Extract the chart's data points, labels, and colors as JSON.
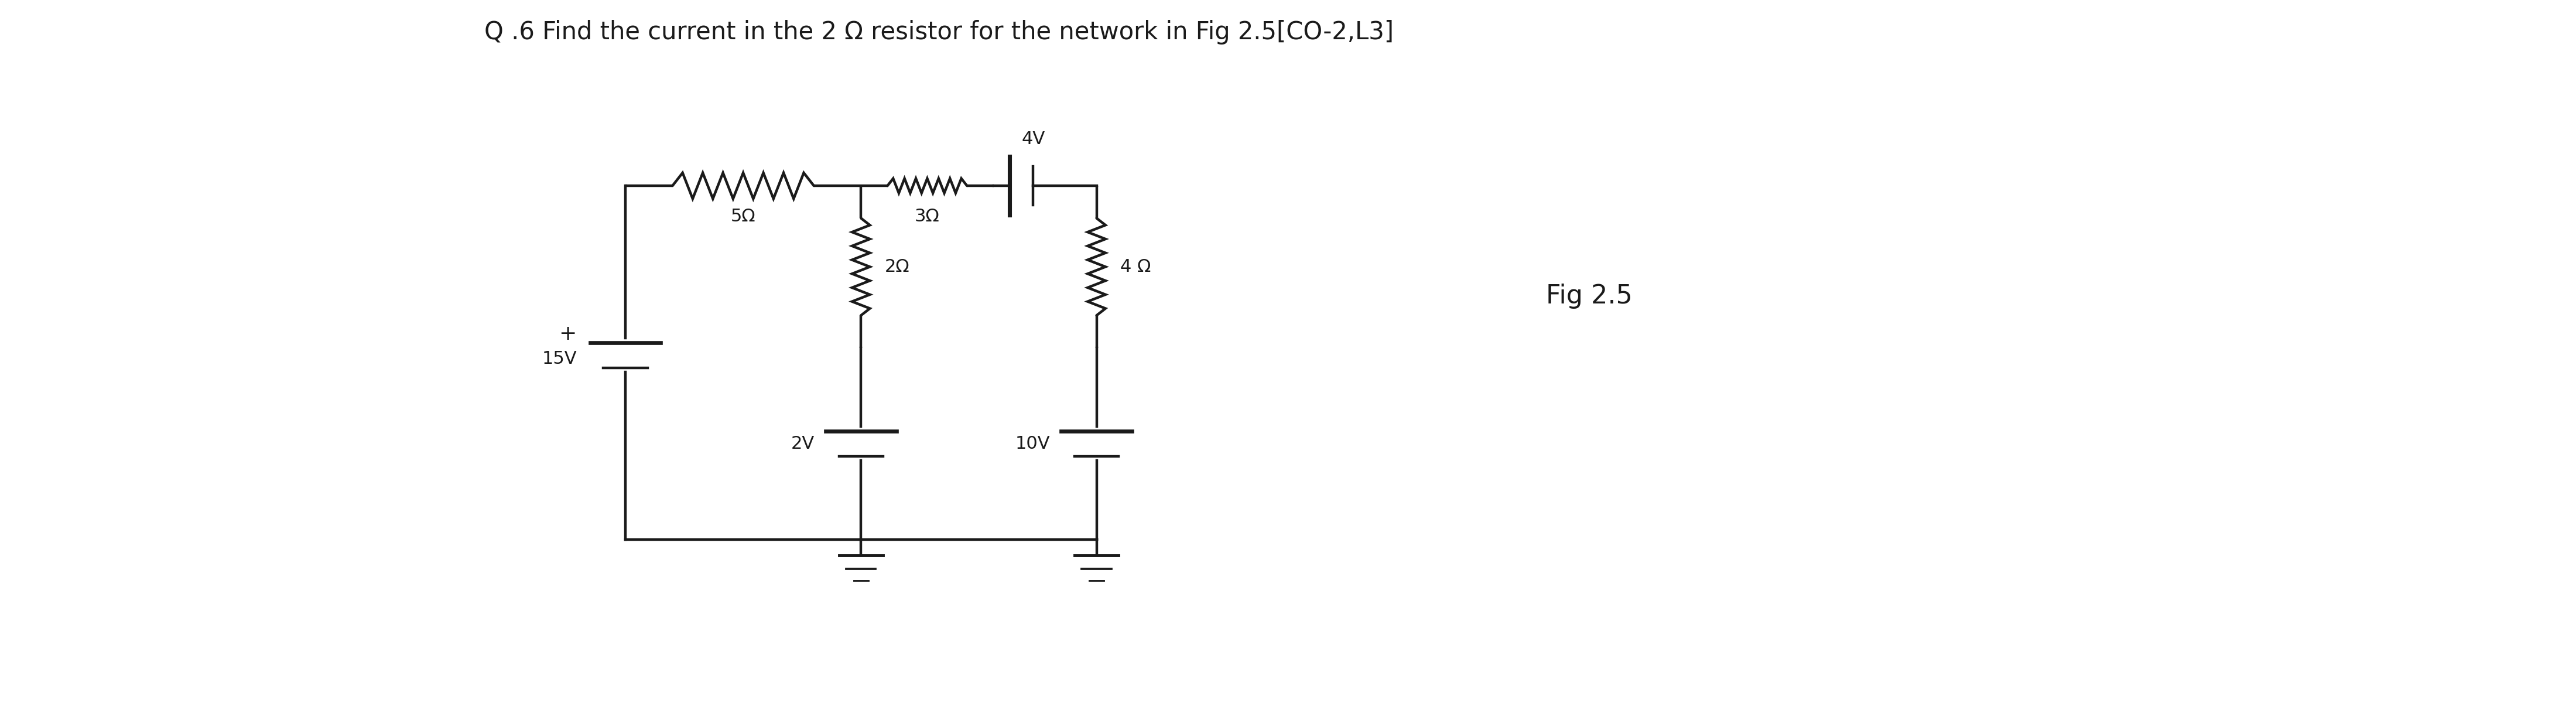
{
  "title": "Q .6 Find the current in the 2 Ω resistor for the network in Fig 2.5[CO-2,L3]",
  "fig_label": "Fig 2.5",
  "title_fontsize": 30,
  "fig_label_fontsize": 32,
  "background_color": "#ffffff",
  "line_color": "#1a1a1a",
  "text_color": "#1a1a1a",
  "xL": 2.0,
  "xM": 5.2,
  "xR": 8.4,
  "yT": 7.0,
  "yB": 2.2,
  "label_5ohm": "5Ω",
  "label_3ohm": "3Ω",
  "label_2ohm": "2Ω",
  "label_4ohm": "4 Ω",
  "label_15v": "15V",
  "label_2v": "2V",
  "label_4v": "4V",
  "label_10v": "10V"
}
